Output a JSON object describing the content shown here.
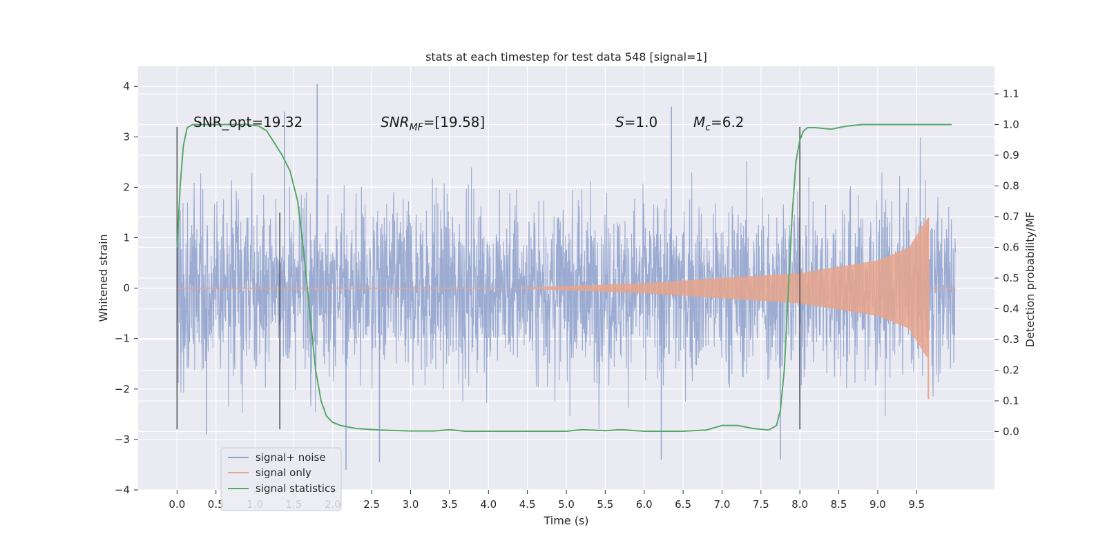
{
  "chart_data": {
    "type": "line",
    "title": "stats at each timestep for test data 548 [signal=1]",
    "xlabel": "Time (s)",
    "ylabel": "Whitened strain",
    "y2label": "Detection probability/MF",
    "xlim": [
      -0.5,
      10.5
    ],
    "ylim": [
      -4,
      4.4
    ],
    "y2lim": [
      -0.19,
      1.19
    ],
    "xticks": [
      "0.0",
      "0.5",
      "1.0",
      "1.5",
      "2.0",
      "2.5",
      "3.0",
      "3.5",
      "4.0",
      "4.5",
      "5.0",
      "5.5",
      "6.0",
      "6.5",
      "7.0",
      "7.5",
      "8.0",
      "8.5",
      "9.0",
      "9.5"
    ],
    "yticks": [
      "−4",
      "−3",
      "−2",
      "−1",
      "0",
      "1",
      "2",
      "3",
      "4"
    ],
    "y2ticks": [
      "0.0",
      "0.1",
      "0.2",
      "0.3",
      "0.4",
      "0.5",
      "0.6",
      "0.7",
      "0.8",
      "0.9",
      "1.0",
      "1.1"
    ],
    "annotations": {
      "snr_opt": "SNR_opt=19.32",
      "snr_mf_base": "SNR",
      "snr_mf_sub": "MF",
      "snr_mf_rest": "=[19.58]",
      "s_var": "S",
      "s_rest": "=1.0",
      "mc_var": "M",
      "mc_sub": "c",
      "mc_rest": "=6.2"
    },
    "legend": {
      "placement": "lower-left",
      "entries": [
        "signal+ noise",
        "signal only",
        "signal statistics"
      ]
    },
    "grid": true,
    "colors": {
      "background": "#eaeaf2",
      "noise": "#8da0cb",
      "signal": "#e8a58c",
      "statistics": "#55a868",
      "markers": "#555555"
    },
    "series": [
      {
        "name": "signal+ noise",
        "axis": "left",
        "x_range": [
          0.0,
          10.0
        ],
        "typical_amplitude": 1.3,
        "peak_values": [
          {
            "x": 1.8,
            "y": 4.05
          },
          {
            "x": 1.38,
            "y": 3.5
          },
          {
            "x": 6.35,
            "y": 3.6
          },
          {
            "x": 2.6,
            "y": -3.45
          },
          {
            "x": 6.22,
            "y": -3.4
          },
          {
            "x": 7.75,
            "y": -3.4
          },
          {
            "x": 2.17,
            "y": -3.6
          },
          {
            "x": 0.38,
            "y": -2.9
          }
        ]
      },
      {
        "name": "signal only",
        "axis": "left",
        "chirp_start": 4.2,
        "merger_time": 9.65,
        "envelope": [
          [
            4.2,
            0.0
          ],
          [
            6.0,
            0.1
          ],
          [
            7.0,
            0.2
          ],
          [
            8.0,
            0.3
          ],
          [
            9.0,
            0.55
          ],
          [
            9.4,
            0.8
          ],
          [
            9.6,
            1.3
          ],
          [
            9.65,
            1.4
          ]
        ]
      },
      {
        "name": "signal statistics",
        "axis": "right",
        "x": [
          0.0,
          0.04,
          0.08,
          0.13,
          0.2,
          0.35,
          0.6,
          0.9,
          1.05,
          1.15,
          1.25,
          1.35,
          1.45,
          1.55,
          1.62,
          1.7,
          1.78,
          1.85,
          1.92,
          2.0,
          2.1,
          2.3,
          2.6,
          3.0,
          3.3,
          3.5,
          3.7,
          4.0,
          4.5,
          5.0,
          5.2,
          5.5,
          5.7,
          6.0,
          6.5,
          6.8,
          7.0,
          7.2,
          7.4,
          7.6,
          7.7,
          7.75,
          7.8,
          7.85,
          7.9,
          7.95,
          8.0,
          8.05,
          8.1,
          8.2,
          8.4,
          8.6,
          8.8,
          9.0,
          9.5,
          9.95
        ],
        "y": [
          0.6,
          0.8,
          0.93,
          0.99,
          1.0,
          1.0,
          1.0,
          1.0,
          0.995,
          0.98,
          0.94,
          0.9,
          0.85,
          0.75,
          0.6,
          0.4,
          0.2,
          0.1,
          0.05,
          0.03,
          0.02,
          0.01,
          0.005,
          0.002,
          0.002,
          0.006,
          0.001,
          0.001,
          0.001,
          0.001,
          0.006,
          0.003,
          0.006,
          0.001,
          0.001,
          0.005,
          0.02,
          0.02,
          0.01,
          0.005,
          0.02,
          0.07,
          0.2,
          0.45,
          0.7,
          0.88,
          0.95,
          0.98,
          0.99,
          0.99,
          0.985,
          0.995,
          1.0,
          1.0,
          1.0,
          1.0
        ]
      }
    ],
    "vertical_markers": [
      {
        "x": 0.0,
        "y_from": -2.8,
        "y_to": 3.2
      },
      {
        "x": 1.32,
        "y_from": -2.8,
        "y_to": 1.5
      },
      {
        "x": 8.0,
        "y_from": -2.8,
        "y_to": 3.2
      }
    ]
  }
}
